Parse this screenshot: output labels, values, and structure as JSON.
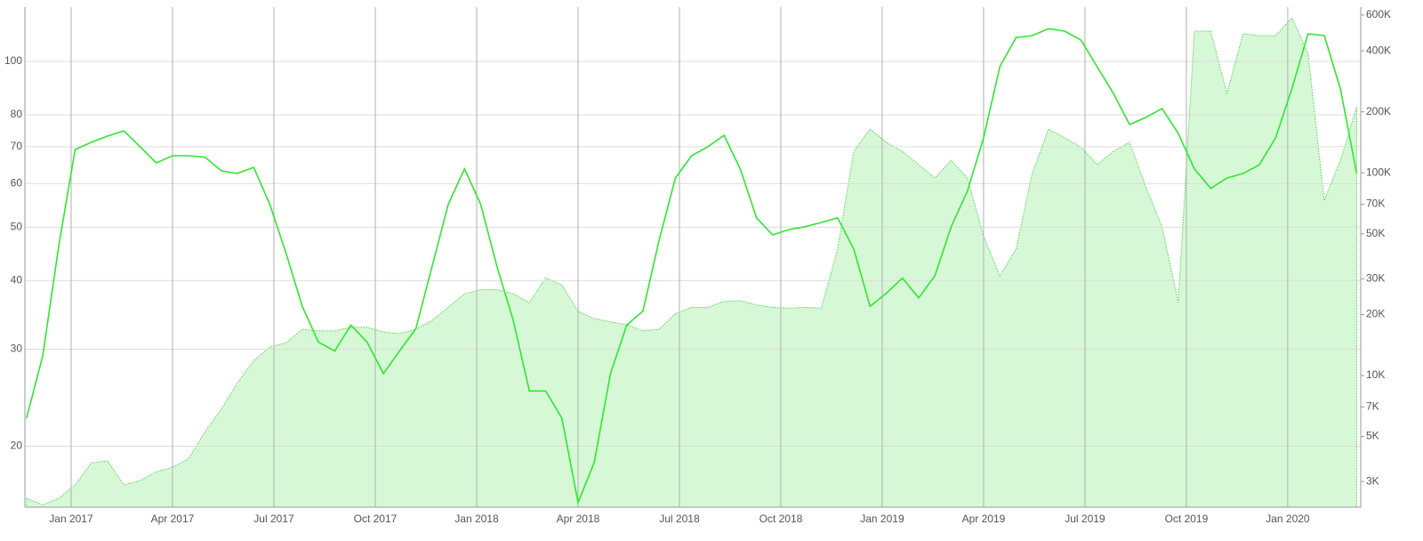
{
  "chart_data": {
    "type": "line",
    "log_y": true,
    "log_y2": true,
    "grid": true,
    "x": [
      2016.89,
      2016.93,
      2016.97,
      2017.01,
      2017.05,
      2017.09,
      2017.13,
      2017.17,
      2017.21,
      2017.25,
      2017.29,
      2017.33,
      2017.37,
      2017.41,
      2017.45,
      2017.49,
      2017.53,
      2017.57,
      2017.61,
      2017.65,
      2017.69,
      2017.73,
      2017.77,
      2017.81,
      2017.85,
      2017.89,
      2017.93,
      2017.97,
      2018.01,
      2018.05,
      2018.09,
      2018.13,
      2018.17,
      2018.21,
      2018.25,
      2018.29,
      2018.33,
      2018.37,
      2018.41,
      2018.45,
      2018.49,
      2018.53,
      2018.57,
      2018.61,
      2018.65,
      2018.69,
      2018.73,
      2018.77,
      2018.81,
      2018.85,
      2018.89,
      2018.93,
      2018.97,
      2019.01,
      2019.05,
      2019.09,
      2019.13,
      2019.17,
      2019.21,
      2019.25,
      2019.29,
      2019.33,
      2019.37,
      2019.41,
      2019.45,
      2019.49,
      2019.53,
      2019.57,
      2019.61,
      2019.65,
      2019.69,
      2019.73,
      2019.77,
      2019.81,
      2019.85,
      2019.89,
      2019.93,
      2019.97,
      2020.01,
      2020.05,
      2020.09,
      2020.13,
      2020.17
    ],
    "xlim": [
      2016.886,
      2020.18
    ],
    "xticks": [
      {
        "value": 2017,
        "label": "Jan 2017"
      },
      {
        "value": 2017.25,
        "label": "Apr 2017"
      },
      {
        "value": 2017.5,
        "label": "Jul 2017"
      },
      {
        "value": 2017.75,
        "label": "Oct 2017"
      },
      {
        "value": 2018,
        "label": "Jan 2018"
      },
      {
        "value": 2018.25,
        "label": "Apr 2018"
      },
      {
        "value": 2018.5,
        "label": "Jul 2018"
      },
      {
        "value": 2018.75,
        "label": "Oct 2018"
      },
      {
        "value": 2019,
        "label": "Jan 2019"
      },
      {
        "value": 2019.25,
        "label": "Apr 2019"
      },
      {
        "value": 2019.5,
        "label": "Jul 2019"
      },
      {
        "value": 2019.75,
        "label": "Oct 2019"
      },
      {
        "value": 2020,
        "label": "Jan 2020"
      }
    ],
    "ylim": [
      15.5,
      125.5
    ],
    "yticks": [
      20,
      30,
      40,
      50,
      60,
      70,
      80,
      100
    ],
    "y2lim": [
      2240,
      657000
    ],
    "y2ticks": [
      {
        "value": 3000,
        "label": "3K"
      },
      {
        "value": 5000,
        "label": "5K"
      },
      {
        "value": 7000,
        "label": "7K"
      },
      {
        "value": 10000,
        "label": "10K"
      },
      {
        "value": 20000,
        "label": "20K"
      },
      {
        "value": 30000,
        "label": "30K"
      },
      {
        "value": 50000,
        "label": "50K"
      },
      {
        "value": 70000,
        "label": "70K"
      },
      {
        "value": 100000,
        "label": "100K"
      },
      {
        "value": 200000,
        "label": "200K"
      },
      {
        "value": 400000,
        "label": "400K"
      },
      {
        "value": 600000,
        "label": "600K"
      }
    ],
    "series": [
      {
        "color": "#c9f5c9",
        "axis": "y2",
        "area": true,
        "values": [
          2480,
          2300,
          2480,
          2880,
          3710,
          3790,
          2880,
          3030,
          3350,
          3520,
          3890,
          5280,
          6790,
          9200,
          11850,
          13800,
          14500,
          16900,
          16600,
          16600,
          17300,
          17300,
          16400,
          16100,
          16900,
          18700,
          21700,
          25300,
          26500,
          26500,
          25300,
          22900,
          30300,
          28000,
          20700,
          19100,
          18400,
          17800,
          16600,
          16900,
          20200,
          21700,
          21700,
          23200,
          23400,
          22300,
          21700,
          21500,
          21700,
          21500,
          42000,
          127600,
          164500,
          141300,
          127600,
          109700,
          94300,
          115200,
          94300,
          48700,
          31000,
          42000,
          99200,
          164500,
          148600,
          134100,
          109700,
          127600,
          141300,
          85200,
          54100,
          22900,
          500000,
          500000,
          246400,
          485000,
          475000,
          475000,
          582000,
          388000,
          73000,
          115200,
          211000
        ]
      },
      {
        "color": "#2ee82e",
        "axis": "y",
        "values": [
          22.5,
          29.2,
          46.5,
          69.2,
          71.3,
          73.2,
          74.8,
          70.0,
          65.4,
          67.4,
          67.4,
          67.0,
          63.3,
          62.6,
          64.2,
          55.0,
          44.8,
          35.9,
          30.9,
          29.8,
          33.2,
          30.9,
          27.1,
          29.8,
          32.7,
          42.4,
          55.0,
          63.8,
          55.0,
          42.4,
          33.9,
          25.2,
          25.2,
          22.5,
          15.8,
          18.7,
          27.1,
          33.2,
          35.2,
          47.4,
          61.4,
          67.4,
          70.0,
          73.4,
          63.8,
          52.0,
          48.4,
          49.5,
          50.1,
          51.0,
          52.0,
          45.6,
          35.9,
          37.9,
          40.4,
          37.2,
          40.8,
          50.1,
          58.1,
          72.6,
          97.8,
          110.5,
          111.4,
          114.7,
          113.5,
          109.3,
          97.8,
          87.5,
          76.8,
          79.1,
          82.1,
          74.0,
          63.8,
          58.8,
          61.4,
          62.6,
          64.9,
          72.6,
          89.1,
          112.2,
          111.4,
          89.1,
          62.6
        ]
      }
    ]
  }
}
